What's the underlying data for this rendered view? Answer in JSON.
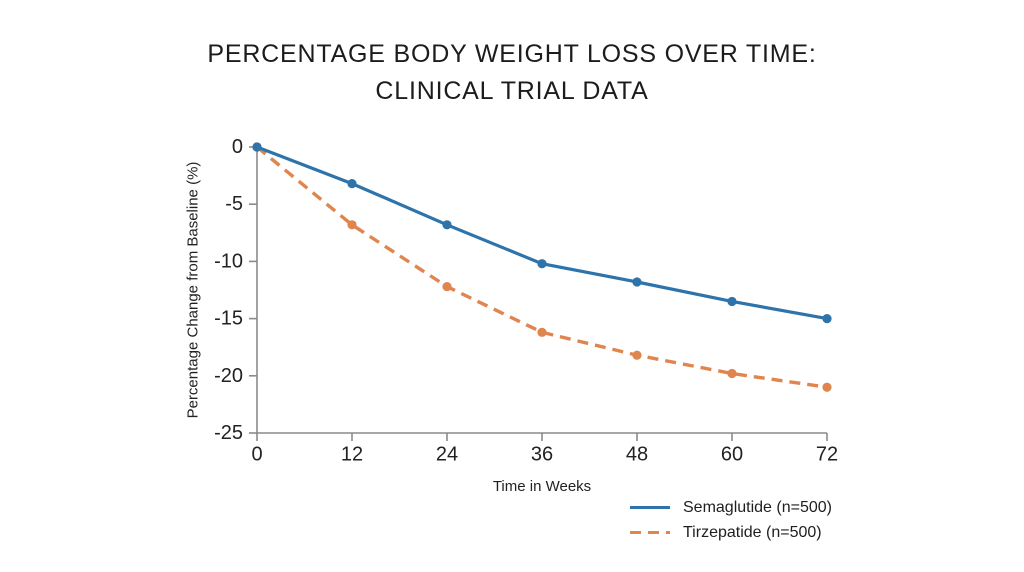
{
  "title": {
    "line1": "PERCENTAGE BODY WEIGHT LOSS OVER TIME:",
    "line2": "CLINICAL TRIAL DATA"
  },
  "chart_data": {
    "type": "line",
    "x": [
      0,
      12,
      24,
      36,
      48,
      60,
      72
    ],
    "series": [
      {
        "name": "Semaglutide (n=500)",
        "values": [
          0,
          -3.2,
          -6.8,
          -10.2,
          -11.8,
          -13.5,
          -15.0
        ],
        "color": "#2E73A9",
        "style": "solid"
      },
      {
        "name": "Tirzepatide (n=500)",
        "values": [
          0,
          -6.8,
          -12.2,
          -16.2,
          -18.2,
          -19.8,
          -21.0
        ],
        "color": "#E0854E",
        "style": "dashed"
      }
    ],
    "xlabel": "Time in Weeks",
    "ylabel": "Percentage Change from Baseline (%)",
    "xlim": [
      0,
      72
    ],
    "ylim": [
      -25,
      0
    ],
    "xticks": [
      0,
      12,
      24,
      36,
      48,
      60,
      72
    ],
    "yticks": [
      0,
      -5,
      -10,
      -15,
      -20,
      -25
    ],
    "grid": false,
    "legend_position": "bottom-right",
    "axis_color": "#8a8a8a",
    "text_color": "#222222",
    "background_color": "#ffffff"
  }
}
